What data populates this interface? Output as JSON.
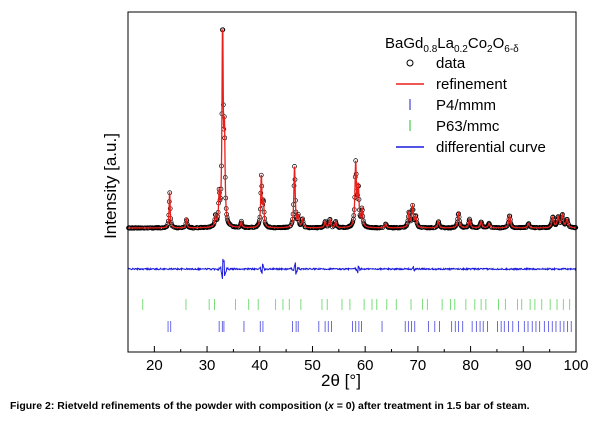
{
  "caption": {
    "prefix": "Figure 2:  Rietveld refinements of the powder with composition (",
    "var": "x",
    "suffix": " = 0) after treatment in 1.5 bar of steam."
  },
  "chart_data": {
    "type": "line",
    "title_parts": [
      {
        "t": "BaGd",
        "sub": false
      },
      {
        "t": "0.8",
        "sub": true
      },
      {
        "t": "La",
        "sub": false
      },
      {
        "t": "0.2",
        "sub": true
      },
      {
        "t": "Co",
        "sub": false
      },
      {
        "t": "2",
        "sub": true
      },
      {
        "t": "O",
        "sub": false
      },
      {
        "t": "6-δ",
        "sub": true
      }
    ],
    "xlabel": "2θ [°]",
    "ylabel": "Intensity [a.u.]",
    "xlim": [
      15,
      100
    ],
    "xticks": [
      20,
      30,
      40,
      50,
      60,
      70,
      80,
      90,
      100
    ],
    "x_minor_step": 5,
    "y_ticks_shown": false,
    "legend_position": "top-right",
    "legend": [
      {
        "label": "data",
        "marker": "circle",
        "color": "#000000"
      },
      {
        "label": "refinement",
        "marker": "line",
        "color": "#e8201c"
      },
      {
        "label": "P4/mmm",
        "marker": "tick",
        "color": "#1e1ecf"
      },
      {
        "label": "P63/mmc",
        "marker": "tick",
        "color": "#22c422"
      },
      {
        "label": "differential curve",
        "marker": "line",
        "color": "#1a1adc"
      }
    ],
    "background_level": 0.06,
    "peaks": [
      {
        "x": 22.9,
        "h": 0.17
      },
      {
        "x": 26.1,
        "h": 0.04
      },
      {
        "x": 31.6,
        "h": 0.05
      },
      {
        "x": 32.3,
        "h": 0.14
      },
      {
        "x": 32.95,
        "h": 1.0
      },
      {
        "x": 33.3,
        "h": 0.4
      },
      {
        "x": 36.5,
        "h": 0.03
      },
      {
        "x": 40.3,
        "h": 0.24
      },
      {
        "x": 40.7,
        "h": 0.11
      },
      {
        "x": 46.6,
        "h": 0.29
      },
      {
        "x": 47.3,
        "h": 0.05
      },
      {
        "x": 48.1,
        "h": 0.04
      },
      {
        "x": 52.4,
        "h": 0.03
      },
      {
        "x": 53.3,
        "h": 0.04
      },
      {
        "x": 54.4,
        "h": 0.03
      },
      {
        "x": 58.2,
        "h": 0.3
      },
      {
        "x": 58.7,
        "h": 0.18
      },
      {
        "x": 59.4,
        "h": 0.08
      },
      {
        "x": 63.9,
        "h": 0.02
      },
      {
        "x": 68.3,
        "h": 0.07
      },
      {
        "x": 69.0,
        "h": 0.1
      },
      {
        "x": 69.6,
        "h": 0.05
      },
      {
        "x": 73.9,
        "h": 0.03
      },
      {
        "x": 77.7,
        "h": 0.07
      },
      {
        "x": 79.8,
        "h": 0.04
      },
      {
        "x": 82.0,
        "h": 0.03
      },
      {
        "x": 83.5,
        "h": 0.02
      },
      {
        "x": 87.4,
        "h": 0.06
      },
      {
        "x": 91.0,
        "h": 0.02
      },
      {
        "x": 95.6,
        "h": 0.05
      },
      {
        "x": 96.6,
        "h": 0.05
      },
      {
        "x": 97.4,
        "h": 0.06
      },
      {
        "x": 98.3,
        "h": 0.04
      }
    ],
    "difference_features": [
      {
        "x": 32.95,
        "d": 0.05
      },
      {
        "x": 33.3,
        "d": -0.03
      },
      {
        "x": 40.5,
        "d": 0.03
      },
      {
        "x": 46.8,
        "d": -0.035
      },
      {
        "x": 58.6,
        "d": 0.02
      },
      {
        "x": 69.2,
        "d": -0.01
      }
    ],
    "reflections": [
      {
        "phase": "P4/mmm",
        "color": "#5a5ae0",
        "positions": [
          22.6,
          23.1,
          32.3,
          32.9,
          33.2,
          37.0,
          40.1,
          40.6,
          46.2,
          46.9,
          47.3,
          51.2,
          52.4,
          53.0,
          53.6,
          57.6,
          58.2,
          58.8,
          59.3,
          63.2,
          67.6,
          68.2,
          68.8,
          69.4,
          72.0,
          73.2,
          74.1,
          76.4,
          77.1,
          77.7,
          78.5,
          80.3,
          81.1,
          81.8,
          82.4,
          83.2,
          85.1,
          85.8,
          86.4,
          87.2,
          88.0,
          89.1,
          90.2,
          90.9,
          91.7,
          92.4,
          93.1,
          94.0,
          94.8,
          95.5,
          96.2,
          97.0,
          97.7,
          98.4,
          99.1
        ]
      },
      {
        "phase": "P63/mmc",
        "color": "#6cd86c",
        "positions": [
          17.8,
          26.0,
          30.4,
          31.4,
          35.4,
          37.9,
          39.7,
          43.0,
          44.4,
          45.6,
          47.8,
          51.8,
          52.8,
          55.6,
          57.1,
          59.8,
          61.3,
          62.2,
          64.1,
          65.9,
          68.7,
          70.9,
          71.8,
          74.6,
          76.2,
          77.0,
          79.1,
          80.8,
          82.0,
          82.9,
          85.3,
          86.6,
          88.9,
          89.7,
          91.3,
          92.2,
          93.5,
          95.1,
          96.4,
          97.6,
          98.8
        ]
      }
    ]
  }
}
